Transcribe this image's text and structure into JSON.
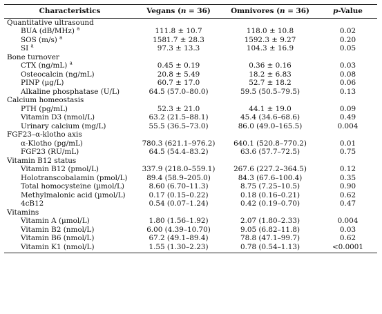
{
  "header": {
    "characteristics": "Characteristics",
    "vegans_label": "Vegans (",
    "vegans_n": "n",
    "vegans_count": " = 36)",
    "omnivores_label": "Omnivores (",
    "omnivores_n": "n",
    "omnivores_count": " = 36)",
    "p_value_p": "p",
    "p_value_rest": "-Value"
  },
  "rows": [
    {
      "type": "section",
      "label": "Quantitative ultrasound"
    },
    {
      "type": "data",
      "label": "BUA (dB/MHz)",
      "sup": "a",
      "vegans": "111.8 ± 10.7",
      "omnivores": "118.0 ± 10.8",
      "p": "0.02"
    },
    {
      "type": "data",
      "label": "SOS (m/s)",
      "sup": "a",
      "vegans": "1581.7 ± 28.3",
      "omnivores": "1592.3 ± 9.27",
      "p": "0.20"
    },
    {
      "type": "data",
      "label": "SI",
      "sup": "a",
      "vegans": "97.3 ± 13.3",
      "omnivores": "104.3 ± 16.9",
      "p": "0.05"
    },
    {
      "type": "section",
      "label": "Bone turnover"
    },
    {
      "type": "data",
      "label": "CTX (ng/mL)",
      "sup": "a",
      "vegans": "0.45 ± 0.19",
      "omnivores": "0.36 ± 0.16",
      "p": "0.03"
    },
    {
      "type": "data",
      "label": "Osteocalcin (ng/mL)",
      "vegans": "20.8 ± 5.49",
      "omnivores": "18.2 ± 6.83",
      "p": "0.08"
    },
    {
      "type": "data",
      "label": "PINP (µg/L)",
      "vegans": "60.7 ± 17.0",
      "omnivores": "52.7 ± 18.2",
      "p": "0.06"
    },
    {
      "type": "data",
      "label": "Alkaline phosphatase (U/L)",
      "vegans": "64.5 (57.0–80.0)",
      "omnivores": "59.5 (50.5–79.5)",
      "p": "0.13"
    },
    {
      "type": "section",
      "label": "Calcium homeostasis"
    },
    {
      "type": "data",
      "label": "PTH (pg/mL)",
      "vegans": "52.3 ± 21.0",
      "omnivores": "44.1 ± 19.0",
      "p": "0.09"
    },
    {
      "type": "data",
      "label": "Vitamin D3 (nmol/L)",
      "vegans": "63.2 (21.5–88.1)",
      "omnivores": "45.4 (34.6–68.6)",
      "p": "0.49"
    },
    {
      "type": "data",
      "label": "Urinary calcium (mg/L)",
      "vegans": "55.5 (36.5–73.0)",
      "omnivores": "86.0 (49.0–165.5)",
      "p": "0.004"
    },
    {
      "type": "section",
      "label": "FGF23–α-klotho axis"
    },
    {
      "type": "data",
      "label": "α-Klotho (pg/mL)",
      "vegans": "780.3 (621.1–976.2)",
      "omnivores": "640.1 (520.8–770.2)",
      "p": "0.01"
    },
    {
      "type": "data",
      "label": "FGF23 (RU/mL)",
      "vegans": "64.5 (54.4–83.2)",
      "omnivores": "63.6 (57.7–72.5)",
      "p": "0.75"
    },
    {
      "type": "section",
      "label": "Vitamin B12 status"
    },
    {
      "type": "data",
      "label": "Vitamin B12 (pmol/L)",
      "vegans": "337.9 (218.0–559.1)",
      "omnivores": "267.6 (227.2–364.5)",
      "p": "0.12"
    },
    {
      "type": "data",
      "label": "Holotranscobalamin (pmol/L)",
      "vegans": "89.4 (58.9–205.0)",
      "omnivores": "84.3 (67.6–100.4)",
      "p": "0.35"
    },
    {
      "type": "data",
      "label": "Total homocysteine (µmol/L)",
      "vegans": "8.60 (6.70–11.3)",
      "omnivores": "8.75 (7.25–10.5)",
      "p": "0.90"
    },
    {
      "type": "data",
      "label": "Methylmalonic acid (µmol/L)",
      "vegans": "0.17 (0.15–0.22)",
      "omnivores": "0.18 (0.16–0.21)",
      "p": "0.62"
    },
    {
      "type": "data",
      "label": "4cB12",
      "vegans": "0.54 (0.07–1.24)",
      "omnivores": "0.42 (0.19–0.70)",
      "p": "0.47"
    },
    {
      "type": "section",
      "label": "Vitamins"
    },
    {
      "type": "data",
      "label": "Vitamin A (µmol/L)",
      "vegans": "1.80 (1.56–1.92)",
      "omnivores": "2.07 (1.80–2.33)",
      "p": "0.004"
    },
    {
      "type": "data",
      "label": "Vitamin B2 (nmol/L)",
      "vegans": "6.00 (4.39–10.70)",
      "omnivores": "9.05 (6.82–11.8)",
      "p": "0.03"
    },
    {
      "type": "data",
      "label": "Vitamin B6 (nmol/L)",
      "vegans": "67.2 (49.1–89.4)",
      "omnivores": "78.8 (47.1–99.7)",
      "p": "0.62"
    },
    {
      "type": "data",
      "label": "Vitamin K1 (nmol/L)",
      "vegans": "1.55 (1.30–2.23)",
      "omnivores": "0.78 (0.54–1.13)",
      "p": "<0.0001"
    }
  ]
}
